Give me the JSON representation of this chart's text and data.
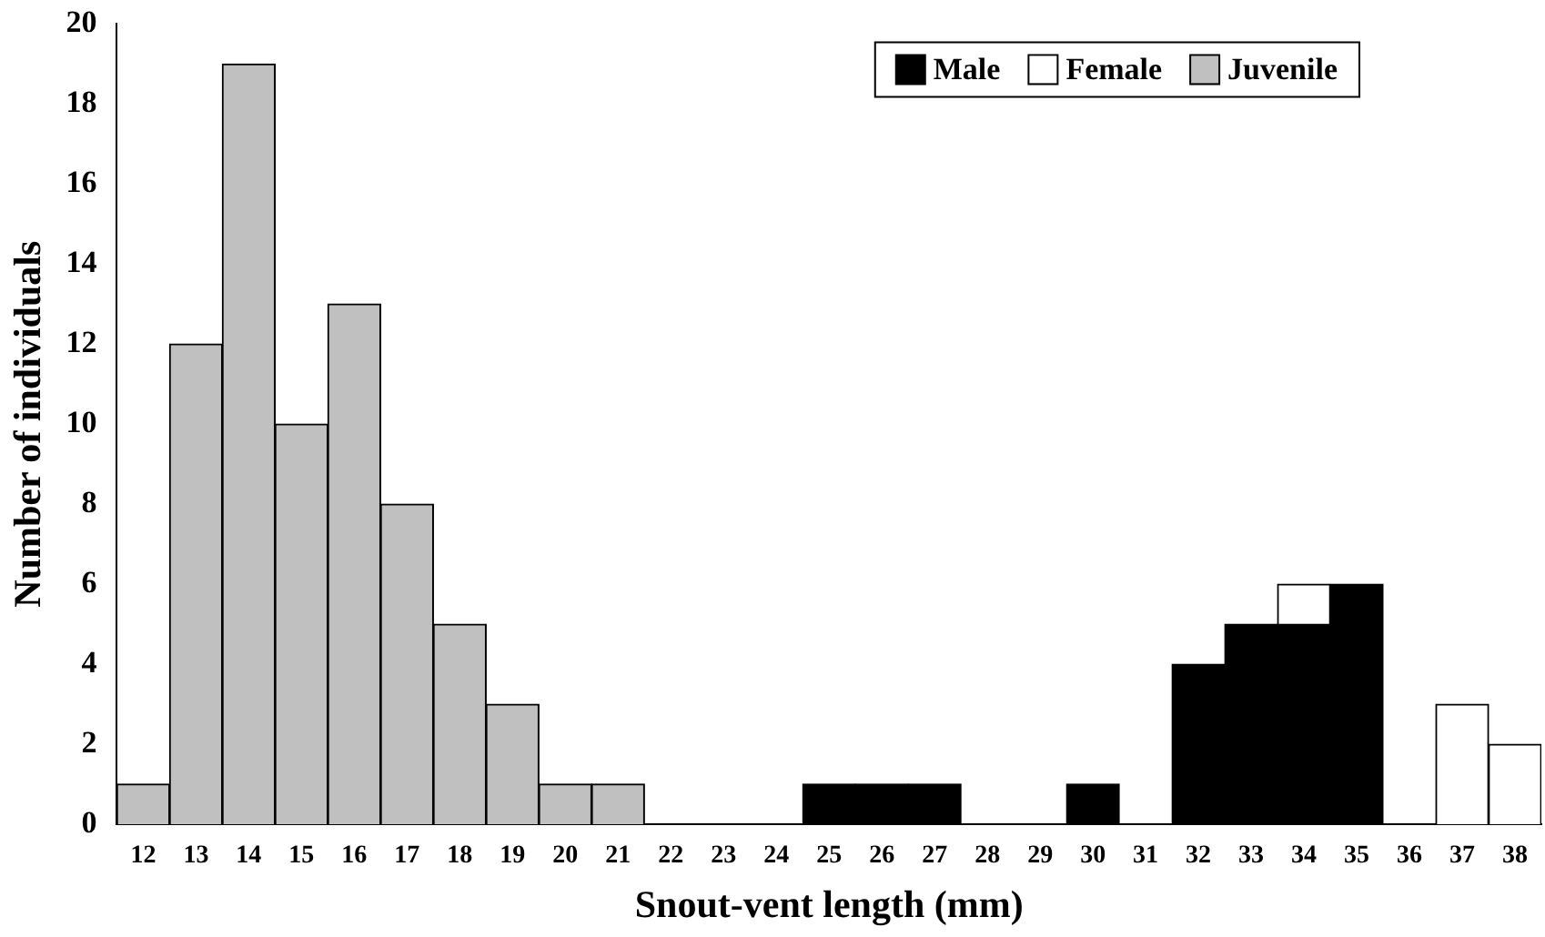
{
  "chart_data": {
    "type": "bar",
    "stacked": true,
    "xlabel": "Snout-vent length (mm)",
    "ylabel": "Number of individuals",
    "categories": [
      "12",
      "13",
      "14",
      "15",
      "16",
      "17",
      "18",
      "19",
      "20",
      "21",
      "22",
      "23",
      "24",
      "25",
      "26",
      "27",
      "28",
      "29",
      "30",
      "31",
      "32",
      "33",
      "34",
      "35",
      "36",
      "37",
      "38"
    ],
    "series": [
      {
        "name": "Male",
        "color": "#000000",
        "values": [
          0,
          0,
          0,
          0,
          0,
          0,
          0,
          0,
          0,
          0,
          0,
          0,
          0,
          1,
          1,
          1,
          0,
          0,
          1,
          0,
          4,
          5,
          5,
          6,
          0,
          0,
          0
        ]
      },
      {
        "name": "Female",
        "color": "#ffffff",
        "values": [
          0,
          0,
          0,
          0,
          0,
          0,
          0,
          0,
          0,
          0,
          0,
          0,
          0,
          0,
          0,
          0,
          0,
          0,
          0,
          0,
          0,
          0,
          1,
          0,
          0,
          3,
          2
        ]
      },
      {
        "name": "Juvenile",
        "color": "#c0c0c0",
        "values": [
          1,
          12,
          19,
          10,
          13,
          8,
          5,
          3,
          1,
          1,
          0,
          0,
          0,
          0,
          0,
          0,
          0,
          0,
          0,
          0,
          0,
          0,
          0,
          0,
          0,
          0,
          0
        ]
      }
    ],
    "ylim": [
      0,
      20
    ],
    "yticks": [
      0,
      2,
      4,
      6,
      8,
      10,
      12,
      14,
      16,
      18,
      20
    ],
    "grid": false,
    "legend": "top right"
  }
}
